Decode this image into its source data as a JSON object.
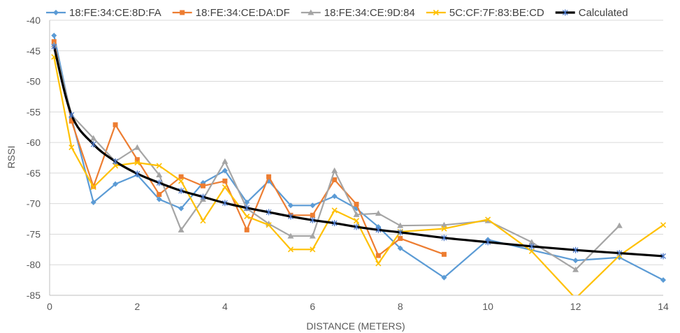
{
  "chart_data": {
    "type": "line",
    "title": "",
    "xlabel": "DISTANCE (METERS)",
    "ylabel": "RSSI",
    "xlim": [
      0,
      14
    ],
    "ylim": [
      -85,
      -40
    ],
    "xticks": [
      0,
      2,
      4,
      6,
      8,
      10,
      12,
      14
    ],
    "yticks": [
      -40,
      -45,
      -50,
      -55,
      -60,
      -65,
      -70,
      -75,
      -80,
      -85
    ],
    "grid": "horizontal",
    "legend_position": "top",
    "series": [
      {
        "name": "18:FE:34:CE:8D:FA",
        "color": "#5b9bd5",
        "marker": "diamond",
        "x": [
          0.1,
          0.5,
          1,
          1.5,
          2,
          2.5,
          3,
          3.5,
          4,
          4.5,
          5,
          5.5,
          6,
          6.5,
          7,
          7.5,
          8,
          9,
          10,
          12,
          13,
          14
        ],
        "y": [
          -42.5,
          -56,
          -69.8,
          -66.8,
          -65.3,
          -69.3,
          -70.8,
          -66.6,
          -64.6,
          -69.8,
          -66.3,
          -70.3,
          -70.3,
          -68.8,
          -70.8,
          -73.8,
          -77.3,
          -82.1,
          -75.9,
          -79.3,
          -78.8,
          -82.5
        ]
      },
      {
        "name": "18:FE:34:CE:DA:DF",
        "color": "#ed7d31",
        "marker": "square",
        "x": [
          0.1,
          0.5,
          1,
          1.5,
          2,
          2.5,
          3,
          3.5,
          4,
          4.5,
          5,
          5.5,
          6,
          6.5,
          7,
          7.5,
          8,
          9
        ],
        "y": [
          -43.5,
          -56.5,
          -67.2,
          -57.1,
          -62.8,
          -68.5,
          -65.6,
          -67.1,
          -66.3,
          -74.3,
          -65.6,
          -71.9,
          -71.9,
          -66.1,
          -70.1,
          -78.5,
          -75.7,
          -78.3
        ]
      },
      {
        "name": "18:FE:34:CE:9D:84",
        "color": "#a5a5a5",
        "marker": "triangle",
        "x": [
          0.1,
          0.5,
          1,
          1.5,
          2,
          2.5,
          3,
          3.5,
          4,
          4.5,
          5,
          5.5,
          6,
          6.5,
          7,
          7.5,
          8,
          9,
          10,
          11,
          12,
          13
        ],
        "y": [
          -44,
          -55.5,
          -59.3,
          -63.1,
          -60.8,
          -65.3,
          -74.3,
          -69.3,
          -63.1,
          -70.8,
          -73.3,
          -75.3,
          -75.3,
          -64.6,
          -71.8,
          -71.6,
          -73.6,
          -73.5,
          -72.8,
          -76.3,
          -80.8,
          -73.6
        ]
      },
      {
        "name": "5C:CF:7F:83:BE:CD",
        "color": "#ffc000",
        "marker": "x",
        "x": [
          0.1,
          0.5,
          1,
          1.5,
          2,
          2.5,
          3,
          3.5,
          4,
          4.5,
          5,
          5.5,
          6,
          6.5,
          7,
          7.5,
          8,
          9,
          10,
          11,
          12,
          13,
          14
        ],
        "y": [
          -46,
          -60.8,
          -67.3,
          -63.8,
          -63.3,
          -63.8,
          -66.3,
          -72.8,
          -67.3,
          -72.1,
          -73.5,
          -77.5,
          -77.5,
          -71.1,
          -72.8,
          -79.8,
          -74.6,
          -74.1,
          -72.6,
          -77.8,
          -85.5,
          -78.5,
          -73.5
        ]
      },
      {
        "name": "Calculated",
        "color": "#000000",
        "marker": "star",
        "x": [
          0.1,
          0.5,
          1,
          1.5,
          2,
          2.5,
          3,
          3.5,
          4,
          4.5,
          5,
          5.5,
          6,
          6.5,
          7,
          7.5,
          8,
          9,
          10,
          11,
          12,
          13,
          14
        ],
        "y": [
          -44.3,
          -55.5,
          -60.3,
          -63.1,
          -65.1,
          -66.6,
          -67.9,
          -68.9,
          -69.9,
          -70.7,
          -71.4,
          -72.1,
          -72.7,
          -73.2,
          -73.8,
          -74.3,
          -74.7,
          -75.6,
          -76.3,
          -77,
          -77.6,
          -78.1,
          -78.6
        ]
      }
    ]
  }
}
